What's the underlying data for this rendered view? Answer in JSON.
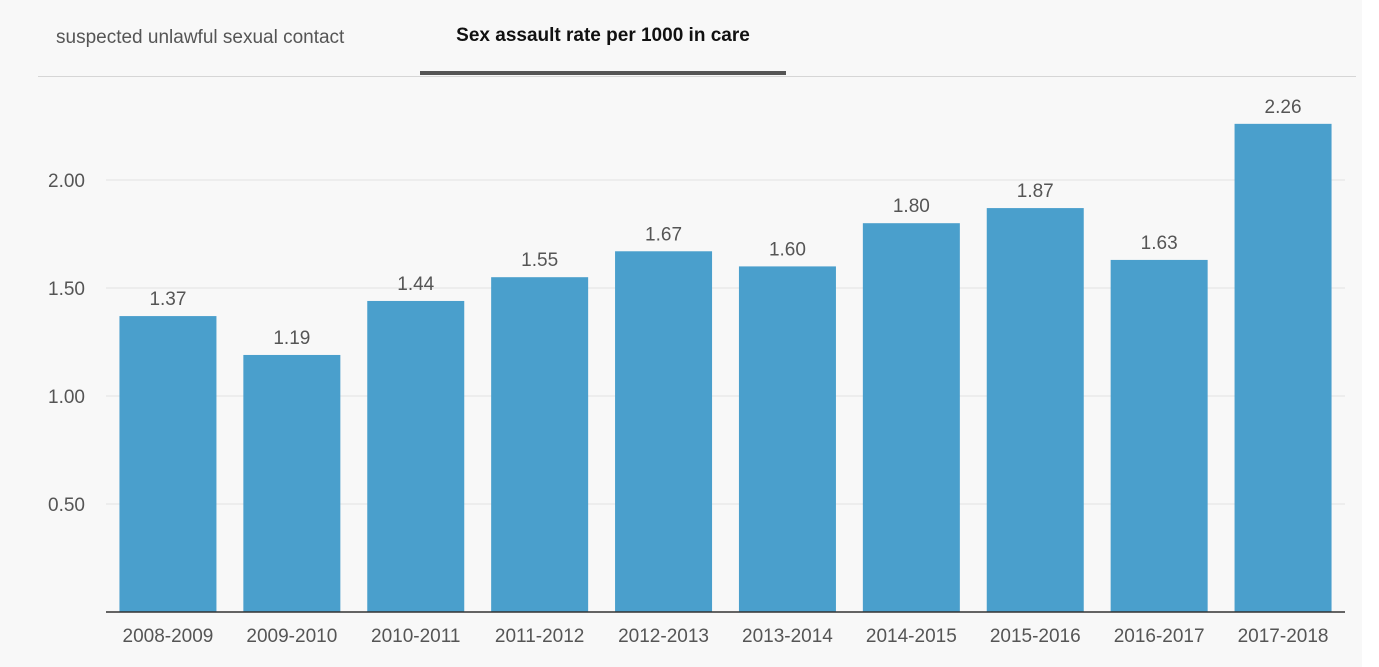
{
  "tabs": [
    {
      "label": "suspected unlawful sexual contact",
      "active": false
    },
    {
      "label": "Sex assault rate per 1000 in care",
      "active": true
    }
  ],
  "colors": {
    "bar": "#4a9fcc",
    "gridline": "#e2e2e2",
    "axis": "#333333",
    "label": "#555555"
  },
  "chart_data": {
    "type": "bar",
    "title": "",
    "xlabel": "",
    "ylabel": "",
    "categories": [
      "2008-2009",
      "2009-2010",
      "2010-2011",
      "2011-2012",
      "2012-2013",
      "2013-2014",
      "2014-2015",
      "2015-2016",
      "2016-2017",
      "2017-2018"
    ],
    "values": [
      1.37,
      1.19,
      1.44,
      1.55,
      1.67,
      1.6,
      1.8,
      1.87,
      1.63,
      2.26
    ],
    "value_labels": [
      "1.37",
      "1.19",
      "1.44",
      "1.55",
      "1.67",
      "1.60",
      "1.80",
      "1.87",
      "1.63",
      "2.26"
    ],
    "yticks": [
      0.5,
      1.0,
      1.5,
      2.0
    ],
    "ytick_labels": [
      "0.50",
      "1.00",
      "1.50",
      "2.00"
    ],
    "ylim": [
      0,
      2.35
    ],
    "grid": true,
    "legend": "none"
  }
}
